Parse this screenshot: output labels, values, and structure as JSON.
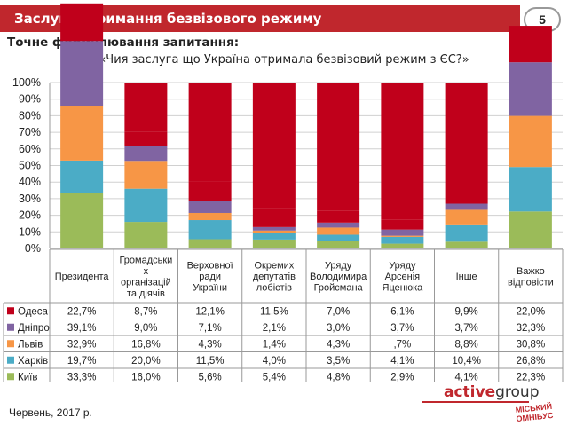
{
  "header": {
    "title": "Заслуга отримання безвізового режиму",
    "page_number": "5"
  },
  "question": {
    "label": "Точне формулювання запитання:",
    "text": "«Чия заслуга що Україна отримала безвізовий режим з ЄС?»"
  },
  "footer": {
    "date": "Червень, 2017 р.",
    "brand_part1": "active",
    "brand_part2": "group",
    "logo_line1": "МІСЬКИЙ",
    "logo_line2": "ОМНІБУС"
  },
  "colors": {
    "accent": "#c0272d"
  },
  "chart_data": {
    "type": "bar",
    "stacked": "percent",
    "ylim": [
      0,
      100
    ],
    "yticks": [
      "0%",
      "10%",
      "20%",
      "30%",
      "40%",
      "50%",
      "60%",
      "70%",
      "80%",
      "90%",
      "100%"
    ],
    "grid": true,
    "categories": [
      [
        "Президента"
      ],
      [
        "Громадськи",
        "х",
        "організацій",
        "та діячів"
      ],
      [
        "Верховної",
        "ради",
        "України"
      ],
      [
        "Окремих",
        "депутатів",
        "лобістів"
      ],
      [
        "Уряду",
        "Володимира",
        "Гройсмана"
      ],
      [
        "Уряду",
        "Арсенія",
        "Яценюка"
      ],
      [
        "Інше"
      ],
      [
        "Важко",
        "відповісти"
      ]
    ],
    "series": [
      {
        "name": "Київ",
        "color": "#9bbb59",
        "values": [
          33.3,
          16.0,
          5.6,
          5.4,
          4.8,
          2.9,
          4.1,
          22.3
        ],
        "labels": [
          "33,3%",
          "16,0%",
          "5,6%",
          "5,4%",
          "4,8%",
          "2,9%",
          "4,1%",
          "22,3%"
        ]
      },
      {
        "name": "Харків",
        "color": "#4bacc6",
        "values": [
          19.7,
          20.0,
          11.5,
          4.0,
          3.5,
          4.1,
          10.4,
          26.8
        ],
        "labels": [
          "19,7%",
          "20,0%",
          "11,5%",
          "4,0%",
          "3,5%",
          "4,1%",
          "10,4%",
          "26,8%"
        ]
      },
      {
        "name": "Львів",
        "color": "#f79646",
        "values": [
          32.9,
          16.8,
          4.3,
          1.4,
          4.3,
          0.7,
          8.8,
          30.8
        ],
        "labels": [
          "32,9%",
          "16,8%",
          "4,3%",
          "1,4%",
          "4,3%",
          ",7%",
          "8,8%",
          "30,8%"
        ]
      },
      {
        "name": "Дніпро",
        "color": "#8064a2",
        "values": [
          39.1,
          9.0,
          7.1,
          2.1,
          3.0,
          3.7,
          3.7,
          32.3
        ],
        "labels": [
          "39,1%",
          "9,0%",
          "7,1%",
          "2,1%",
          "3,0%",
          "3,7%",
          "3,7%",
          "32,3%"
        ]
      },
      {
        "name": "Одеса",
        "color": "#c0001b",
        "values": [
          22.7,
          8.7,
          12.1,
          11.5,
          7.0,
          6.1,
          9.9,
          22.0
        ],
        "labels": [
          "22,7%",
          "8,7%",
          "12,1%",
          "11,5%",
          "7,0%",
          "6,1%",
          "9,9%",
          "22,0%"
        ]
      }
    ]
  }
}
